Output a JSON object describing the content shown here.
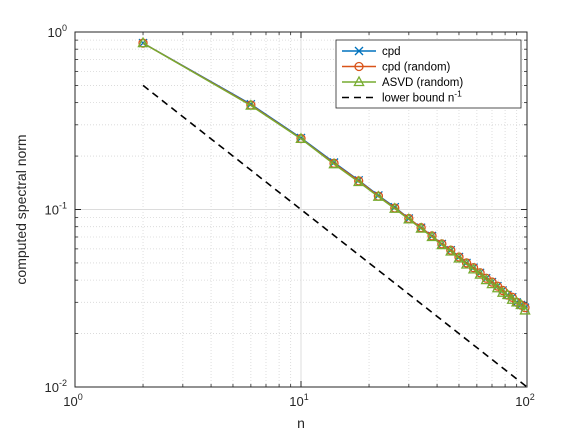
{
  "chart_data": {
    "type": "line",
    "xscale": "log",
    "yscale": "log",
    "xlim": [
      1,
      100
    ],
    "ylim": [
      0.01,
      1
    ],
    "xlabel": "n",
    "ylabel": "computed spectral norm",
    "grid": true,
    "minor_grid": true,
    "legend_position": "top-right",
    "x_ticks": [
      {
        "base": "10",
        "exp": "0"
      },
      {
        "base": "10",
        "exp": "1"
      },
      {
        "base": "10",
        "exp": "2"
      }
    ],
    "y_ticks": [
      {
        "base": "10",
        "exp": "-2"
      },
      {
        "base": "10",
        "exp": "-1"
      },
      {
        "base": "10",
        "exp": "0"
      }
    ],
    "x": [
      2,
      6,
      10,
      14,
      18,
      22,
      26,
      30,
      34,
      38,
      42,
      46,
      50,
      54,
      58,
      62,
      66,
      70,
      74,
      78,
      82,
      86,
      90,
      94,
      98
    ],
    "series": [
      {
        "name": "cpd",
        "color": "#0072bd",
        "marker": "x",
        "line": "solid",
        "values": [
          0.866,
          0.392,
          0.253,
          0.184,
          0.146,
          0.12,
          0.103,
          0.089,
          0.079,
          0.071,
          0.064,
          0.059,
          0.054,
          0.05,
          0.047,
          0.044,
          0.041,
          0.039,
          0.037,
          0.035,
          0.033,
          0.032,
          0.03,
          0.029,
          0.028
        ]
      },
      {
        "name": "cpd (random)",
        "color": "#d95319",
        "marker": "o",
        "line": "solid",
        "values": [
          0.866,
          0.388,
          0.251,
          0.182,
          0.145,
          0.119,
          0.102,
          0.089,
          0.079,
          0.071,
          0.064,
          0.059,
          0.054,
          0.05,
          0.047,
          0.044,
          0.041,
          0.039,
          0.037,
          0.035,
          0.033,
          0.032,
          0.03,
          0.029,
          0.028
        ]
      },
      {
        "name": "ASVD (random)",
        "color": "#77ac30",
        "marker": "triangle",
        "line": "solid",
        "values": [
          0.866,
          0.385,
          0.25,
          0.18,
          0.143,
          0.118,
          0.101,
          0.088,
          0.078,
          0.07,
          0.063,
          0.058,
          0.053,
          0.049,
          0.046,
          0.043,
          0.04,
          0.038,
          0.036,
          0.034,
          0.033,
          0.031,
          0.03,
          0.029,
          0.027
        ]
      },
      {
        "name": "lower bound n",
        "name_superscript": "-1",
        "color": "#000000",
        "marker": "none",
        "line": "dashed",
        "x": [
          2,
          100
        ],
        "values": [
          0.5,
          0.01
        ]
      }
    ]
  }
}
